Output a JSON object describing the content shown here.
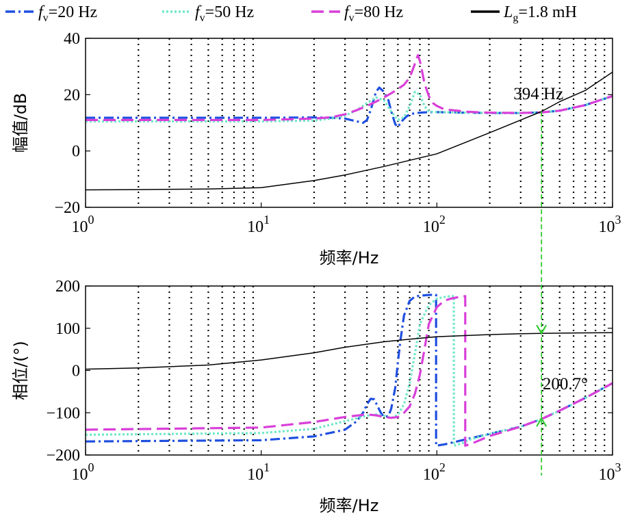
{
  "legend": [
    {
      "id": "s20",
      "prefix": "f",
      "sub": "v",
      "text": "=20 Hz",
      "color": "#1f4fe0",
      "dash": "14,5,3,5"
    },
    {
      "id": "s50",
      "prefix": "f",
      "sub": "v",
      "text": "=50 Hz",
      "color": "#6fe8c8",
      "dash": "3,3"
    },
    {
      "id": "s80",
      "prefix": "f",
      "sub": "v",
      "text": "=80 Hz",
      "color": "#d93fd9",
      "dash": "18,8"
    },
    {
      "id": "lg",
      "prefix": "L",
      "sub": "g",
      "text": "=1.8 mH",
      "color": "#000000",
      "dash": ""
    }
  ],
  "chart_data": [
    {
      "type": "line",
      "xscale": "log",
      "xlim": [
        1,
        1000
      ],
      "ylim": [
        -20,
        40
      ],
      "xlabel": "频率/Hz",
      "ylabel": "幅值/dB",
      "xticks": [
        1,
        10,
        100,
        1000
      ],
      "xtick_labels": [
        [
          "10",
          "0"
        ],
        [
          "10",
          "1"
        ],
        [
          "10",
          "2"
        ],
        [
          "10",
          "3"
        ]
      ],
      "yticks": [
        40,
        20,
        0,
        -20
      ],
      "ytick_labels": [
        "40",
        "20",
        "0",
        "−20"
      ],
      "series": [
        {
          "key": "s20",
          "x": [
            1,
            10,
            20,
            25,
            30,
            35,
            38,
            40,
            42,
            45,
            47,
            50,
            53,
            55,
            58,
            60,
            63,
            67,
            70,
            75,
            80,
            90,
            100,
            150,
            200,
            300,
            394,
            500,
            700,
            1000
          ],
          "y": [
            11.8,
            11.8,
            11.9,
            11.8,
            11.5,
            10.5,
            10,
            11,
            14.5,
            21,
            22.5,
            21,
            18,
            14,
            9.5,
            8.5,
            10.5,
            12.2,
            13,
            13.4,
            13.6,
            13.8,
            13.8,
            13.6,
            13.5,
            13.5,
            13.7,
            14.3,
            16.3,
            19.5
          ]
        },
        {
          "key": "s50",
          "x": [
            1,
            10,
            20,
            25,
            30,
            35,
            40,
            45,
            50,
            55,
            60,
            65,
            70,
            75,
            80,
            85,
            90,
            100,
            150,
            200,
            300,
            394,
            500,
            700,
            1000
          ],
          "y": [
            10.5,
            10.5,
            10.8,
            11.5,
            12.5,
            14.5,
            17,
            19,
            18,
            14,
            11,
            12,
            16,
            21,
            20,
            16,
            14,
            13.8,
            13.6,
            13.5,
            13.5,
            13.7,
            14.3,
            16.3,
            19.5
          ]
        },
        {
          "key": "s80",
          "x": [
            1,
            10,
            20,
            25,
            30,
            35,
            40,
            45,
            50,
            55,
            60,
            65,
            70,
            72,
            75,
            78,
            80,
            82,
            85,
            90,
            95,
            100,
            110,
            150,
            200,
            300,
            394,
            500,
            700,
            1000
          ],
          "y": [
            11,
            11,
            11.5,
            12,
            13,
            14.5,
            16,
            17.5,
            19,
            20.5,
            22,
            23.5,
            26,
            28,
            31,
            34,
            32,
            29,
            24,
            19.5,
            17,
            16,
            14.8,
            13.9,
            13.6,
            13.5,
            13.7,
            14.3,
            16.3,
            19.5
          ]
        },
        {
          "key": "lg",
          "x": [
            1,
            2,
            5,
            10,
            20,
            30,
            50,
            70,
            100,
            200,
            300,
            394,
            500,
            700,
            1000
          ],
          "y": [
            -13.8,
            -13.7,
            -13.5,
            -13,
            -10.5,
            -8.5,
            -5.5,
            -3.3,
            -1,
            6.5,
            11,
            14,
            17.5,
            21.5,
            28
          ]
        }
      ],
      "crossover": {
        "freq": 394,
        "value": 14,
        "label": "394 Hz"
      }
    },
    {
      "type": "line",
      "xscale": "log",
      "xlim": [
        1,
        1000
      ],
      "ylim": [
        -200,
        200
      ],
      "xlabel": "频率/Hz",
      "ylabel": "相位/(°)",
      "xticks": [
        1,
        10,
        100,
        1000
      ],
      "xtick_labels": [
        [
          "10",
          "0"
        ],
        [
          "10",
          "1"
        ],
        [
          "10",
          "2"
        ],
        [
          "10",
          "3"
        ]
      ],
      "yticks": [
        200,
        100,
        0,
        -100,
        -200
      ],
      "ytick_labels": [
        "200",
        "100",
        "0",
        "−100",
        "−200"
      ],
      "series": [
        {
          "key": "s20",
          "x": [
            1,
            10,
            20,
            30,
            35,
            38,
            40,
            42,
            44,
            46,
            48,
            50,
            53,
            55,
            58,
            60,
            62,
            65,
            70,
            75,
            80,
            85,
            90,
            95,
            99,
            99.01,
            110,
            150,
            200,
            300,
            394,
            500,
            700,
            1000
          ],
          "y": [
            -168,
            -165,
            -156,
            -140,
            -120,
            -100,
            -80,
            -67,
            -68,
            -85,
            -100,
            -110,
            -108,
            -90,
            -40,
            20,
            70,
            130,
            165,
            175,
            177,
            178,
            179,
            179,
            179,
            -178,
            -175,
            -162,
            -150,
            -133,
            -115,
            -95,
            -65,
            -30
          ]
        },
        {
          "key": "s50",
          "x": [
            1,
            10,
            20,
            30,
            40,
            45,
            50,
            55,
            60,
            65,
            70,
            75,
            80,
            90,
            100,
            110,
            120,
            125,
            125.01,
            140,
            150,
            200,
            300,
            394,
            500,
            700,
            1000
          ],
          "y": [
            -152,
            -148,
            -138,
            -120,
            -107,
            -104,
            -107,
            -112,
            -105,
            -80,
            -30,
            40,
            110,
            155,
            170,
            174,
            176,
            176,
            -178,
            -172,
            -165,
            -150,
            -133,
            -115,
            -95,
            -65,
            -30
          ]
        },
        {
          "key": "s80",
          "x": [
            1,
            10,
            20,
            30,
            40,
            45,
            50,
            55,
            60,
            65,
            70,
            75,
            80,
            85,
            90,
            100,
            110,
            120,
            130,
            140,
            145,
            145.01,
            160,
            200,
            300,
            394,
            500,
            700,
            1000
          ],
          "y": [
            -140,
            -135,
            -122,
            -110,
            -104,
            -106,
            -110,
            -112,
            -110,
            -100,
            -85,
            -55,
            -10,
            50,
            110,
            150,
            165,
            170,
            173,
            175,
            176,
            -178,
            -172,
            -155,
            -133,
            -115,
            -95,
            -65,
            -30
          ]
        },
        {
          "key": "lg",
          "x": [
            1,
            2,
            5,
            10,
            20,
            30,
            50,
            70,
            100,
            200,
            300,
            394,
            500,
            700,
            1000
          ],
          "y": [
            3,
            6,
            13,
            25,
            42,
            55,
            68,
            74,
            80,
            85,
            87,
            88,
            88.5,
            89,
            89.5
          ]
        }
      ],
      "arrow_top": 88,
      "arrow_bottom": -113,
      "phase_margin_label": "200.7°"
    }
  ]
}
